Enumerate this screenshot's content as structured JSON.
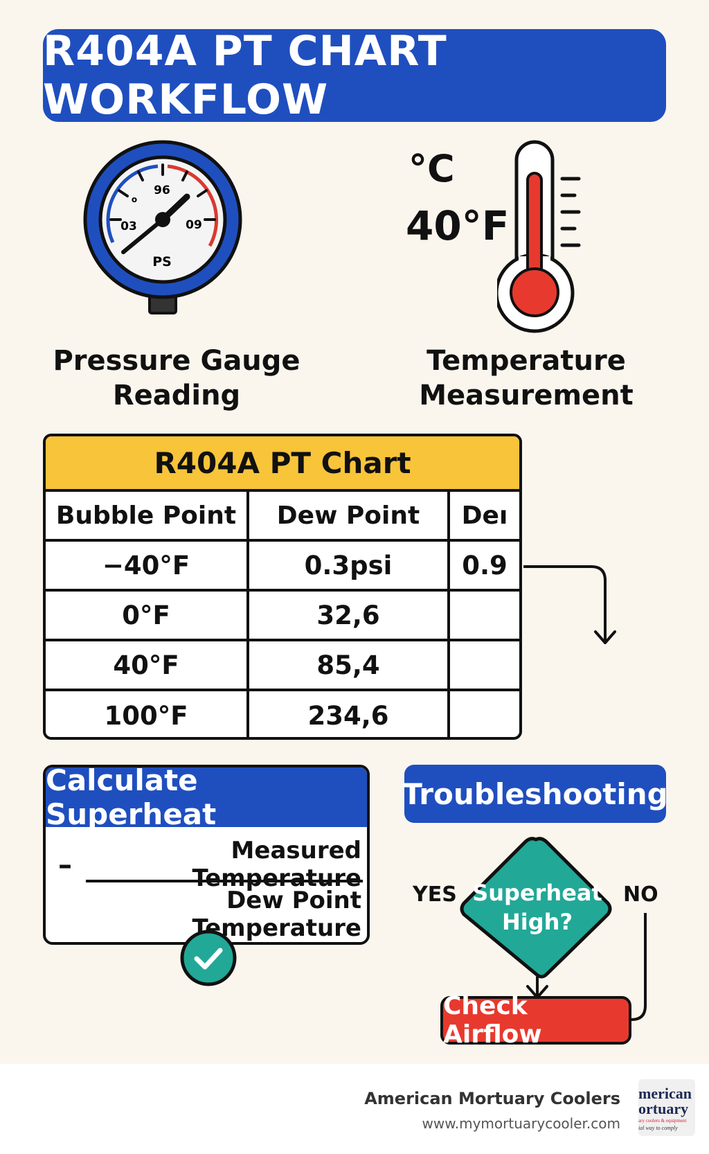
{
  "header": {
    "title": "R404A PT CHART WORKFLOW"
  },
  "gauge": {
    "label_line1": "Pressure Gauge",
    "label_line2": "Reading",
    "dial_top": "96",
    "dial_left": "03",
    "dial_right": "09",
    "dial_unit": "PS",
    "dial_small": "o"
  },
  "thermometer": {
    "unit_c": "°C",
    "value_f": "40°F",
    "label_line1": "Temperature",
    "label_line2": "Measurement"
  },
  "pt_chart": {
    "title": "R404A PT Chart",
    "headers": [
      "Bubble Point",
      "Dew Point",
      "Deı"
    ],
    "rows": [
      [
        "−40°F",
        "0.3psi",
        "0.9"
      ],
      [
        "0°F",
        "32,6",
        ""
      ],
      [
        "40°F",
        "85,4",
        ""
      ],
      [
        "100°F",
        "234,6",
        ""
      ]
    ]
  },
  "superheat": {
    "title": "Calculate Superheat",
    "minus": "–",
    "numerator": "Measured Temperature",
    "denominator": "Dew Point Temperature"
  },
  "troubleshooting": {
    "title": "Troubleshooting",
    "question_line1": "Superheat",
    "question_line2": "High?",
    "yes": "YES",
    "no": "NO",
    "action": "Check Airflow"
  },
  "footer": {
    "brand": "American Mortuary Coolers",
    "url": "www.mymortuarycooler.com",
    "logo_line1": "merican",
    "logo_line2": "ortuary",
    "logo_line3": "ary coolers & equipment",
    "logo_line4": "ial way to comply"
  },
  "colors": {
    "blue": "#1f4fbf",
    "yellow": "#f8c43a",
    "red": "#e8392e",
    "teal": "#22a897",
    "background": "#faf6ee"
  }
}
